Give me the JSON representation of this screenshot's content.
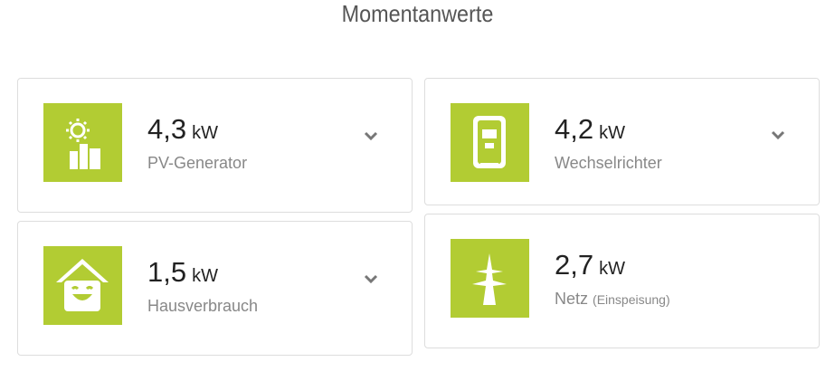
{
  "title": "Momentanwerte",
  "accent_color": "#b2cc33",
  "cards": [
    {
      "icon": "solar-generator-icon",
      "value": "4,3",
      "unit": "kW",
      "label": "PV-Generator",
      "sub": "",
      "expandable": true
    },
    {
      "icon": "inverter-icon",
      "value": "4,2",
      "unit": "kW",
      "label": "Wechselrichter",
      "sub": "",
      "expandable": true
    },
    {
      "icon": "house-smile-icon",
      "value": "1,5",
      "unit": "kW",
      "label": "Hausverbrauch",
      "sub": "",
      "expandable": true
    },
    {
      "icon": "power-pylon-icon",
      "value": "2,7",
      "unit": "kW",
      "label": "Netz",
      "sub": "(Einspeisung)",
      "expandable": false
    }
  ]
}
